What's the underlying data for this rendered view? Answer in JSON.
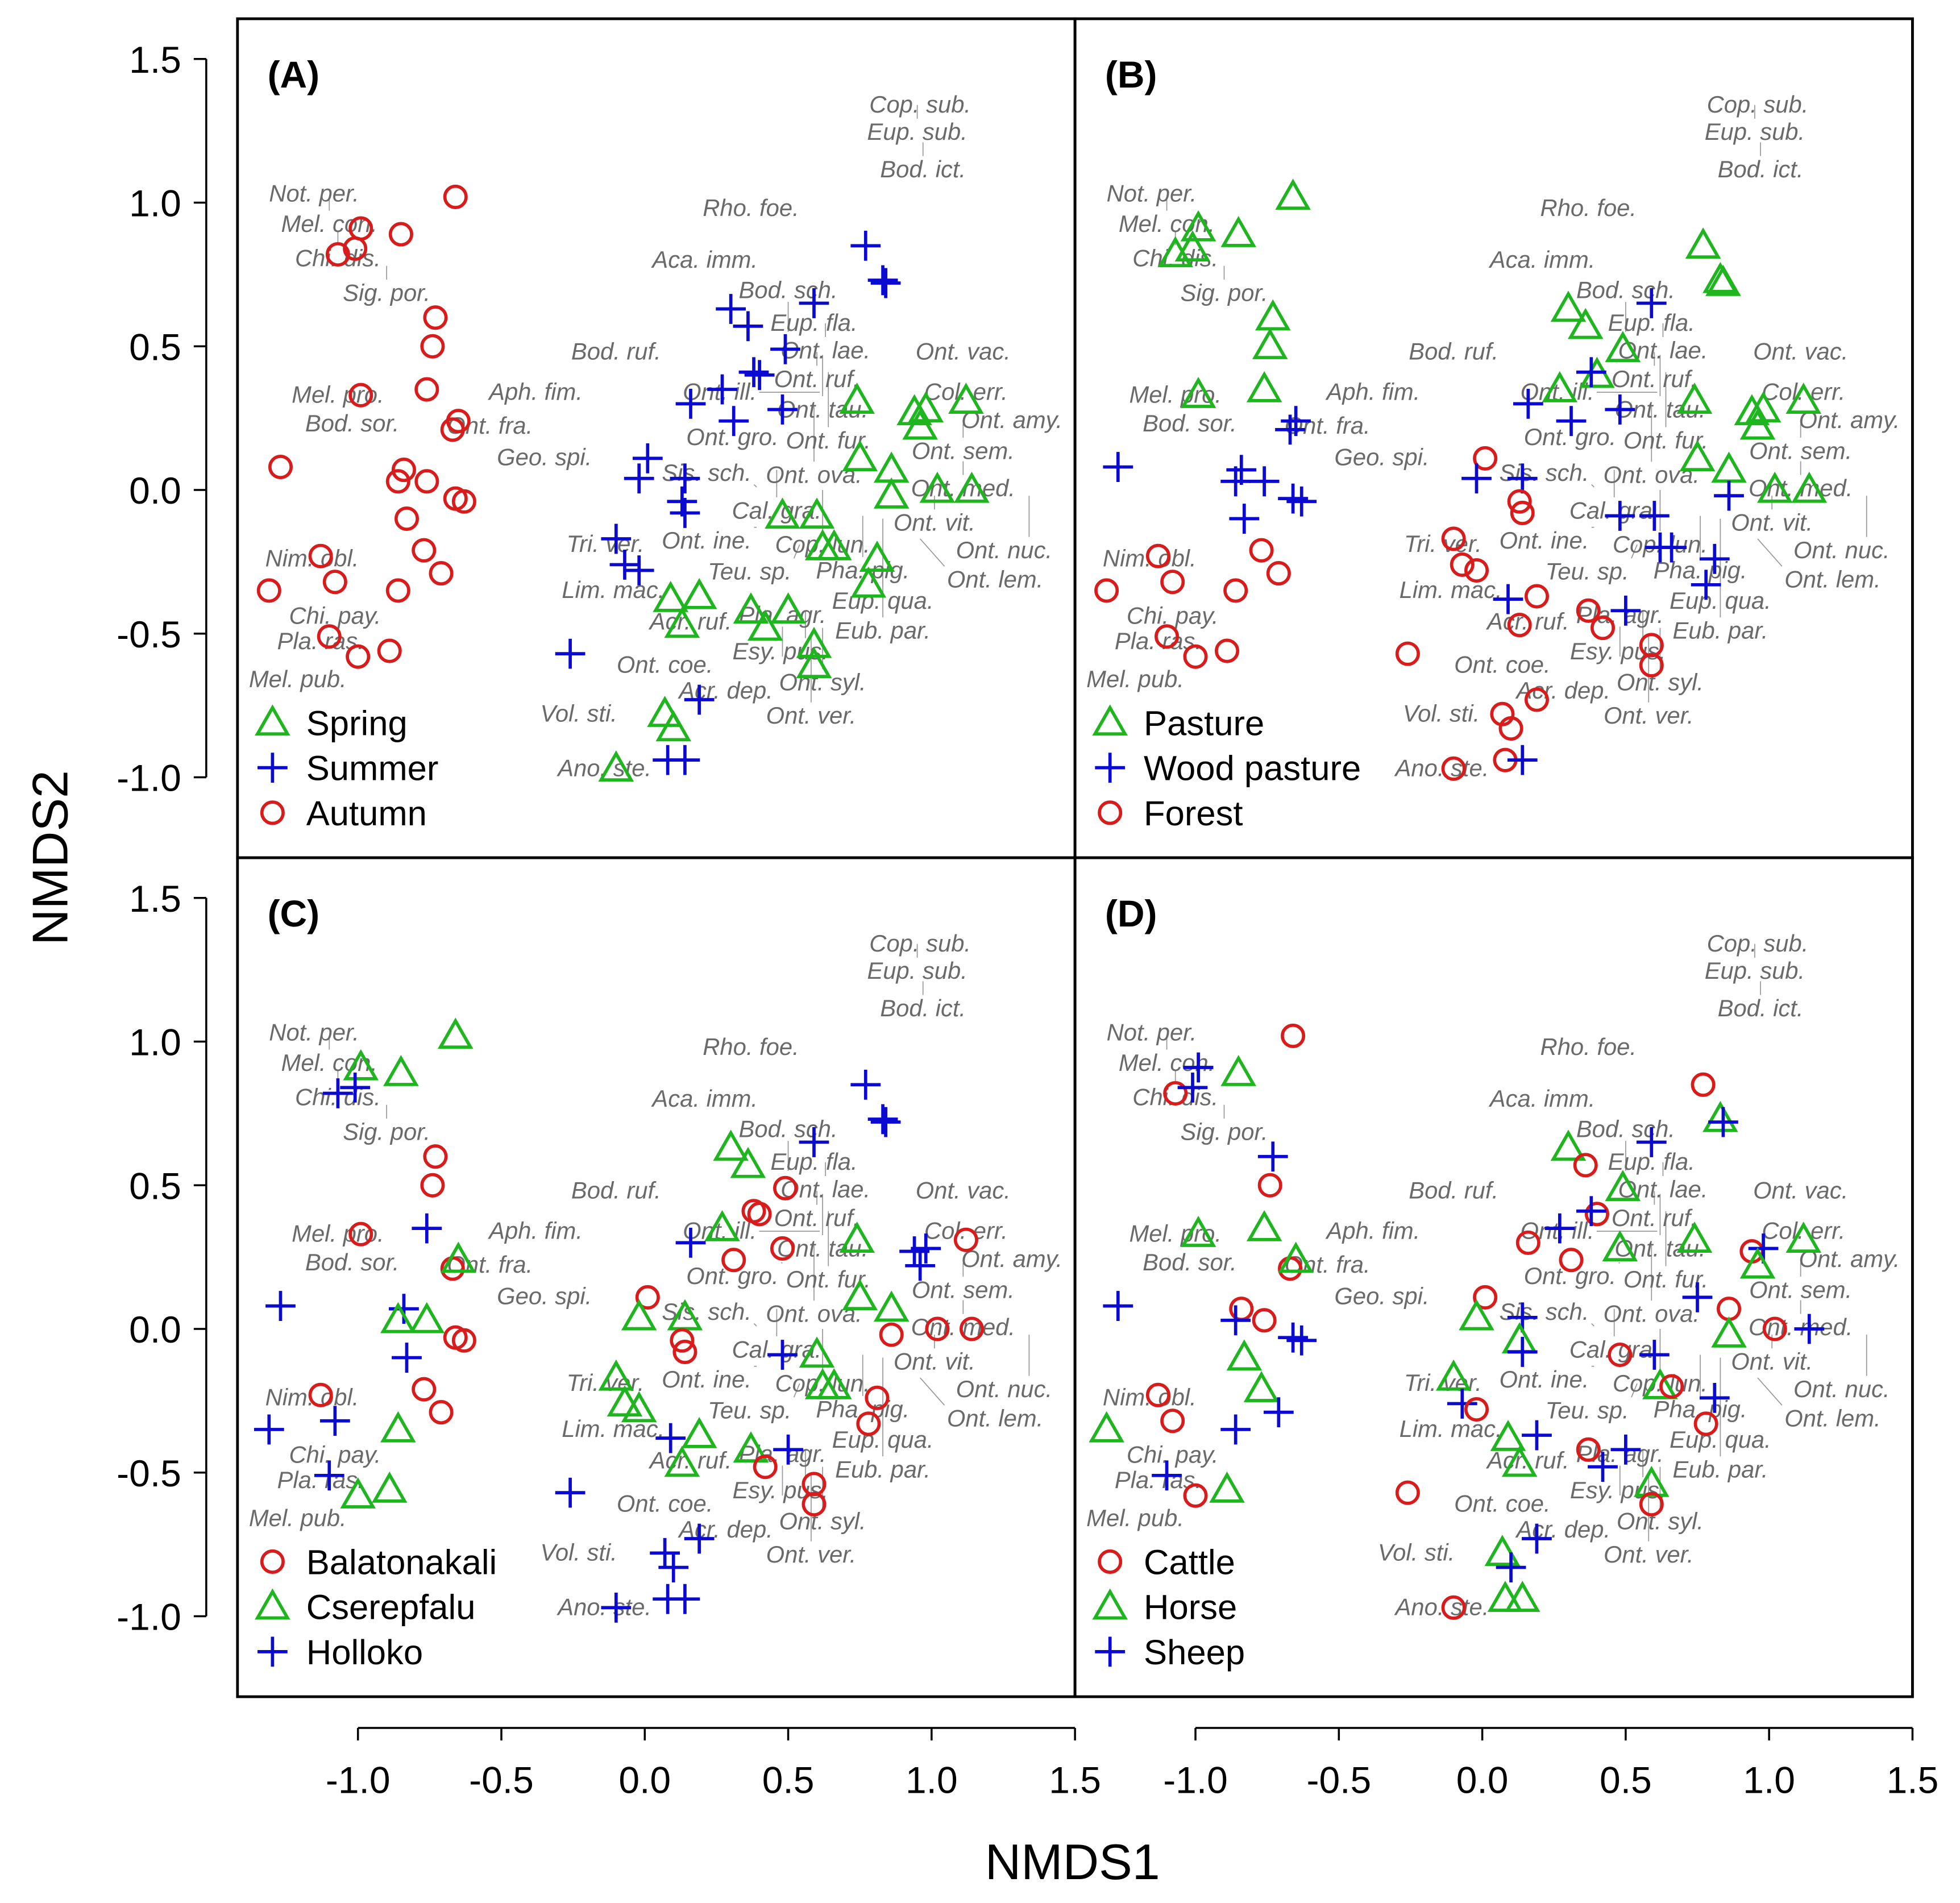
{
  "chart_data": {
    "type": "scatter",
    "title": "",
    "xlabel": "NMDS1",
    "ylabel": "NMDS2",
    "xlim": [
      -1.42,
      1.5
    ],
    "ylim": [
      -1.28,
      1.64
    ],
    "grid": false,
    "x_ticks": [
      {
        "value": -1.0,
        "label": "-1.0"
      },
      {
        "value": -0.5,
        "label": "-0.5"
      },
      {
        "value": 0.0,
        "label": "0.0"
      },
      {
        "value": 0.5,
        "label": "0.5"
      },
      {
        "value": 1.0,
        "label": "1.0"
      },
      {
        "value": 1.5,
        "label": "1.5"
      }
    ],
    "y_ticks": [
      {
        "value": -1.0,
        "label": "-1.0"
      },
      {
        "value": -0.5,
        "label": "-0.5"
      },
      {
        "value": 0.0,
        "label": "0.0"
      },
      {
        "value": 0.5,
        "label": "0.5"
      },
      {
        "value": 1.0,
        "label": "1.0"
      },
      {
        "value": 1.5,
        "label": "1.5"
      }
    ],
    "colors": {
      "green": "#1fb51f",
      "blue": "#0a0ad0",
      "red": "#d81c1c",
      "species_label": "#6a6a6a"
    },
    "point_fields": [
      "NMDS1",
      "NMDS2",
      "season",
      "habitat",
      "site",
      "grazer"
    ],
    "panels": [
      {
        "letter": "(A)",
        "group_field": 2,
        "legend_position": "bottom-left",
        "legend": [
          {
            "label": "Spring",
            "symbol": "triangle",
            "color": "#1fb51f"
          },
          {
            "label": "Summer",
            "symbol": "plus",
            "color": "#0a0ad0"
          },
          {
            "label": "Autumn",
            "symbol": "circle",
            "color": "#d81c1c"
          }
        ]
      },
      {
        "letter": "(B)",
        "group_field": 3,
        "legend_position": "bottom-left",
        "legend": [
          {
            "label": "Pasture",
            "symbol": "triangle",
            "color": "#1fb51f"
          },
          {
            "label": "Wood pasture",
            "symbol": "plus",
            "color": "#0a0ad0"
          },
          {
            "label": "Forest",
            "symbol": "circle",
            "color": "#d81c1c"
          }
        ]
      },
      {
        "letter": "(C)",
        "group_field": 4,
        "legend_position": "bottom-left",
        "legend": [
          {
            "label": "Balatonakali",
            "symbol": "circle",
            "color": "#d81c1c"
          },
          {
            "label": "Cserepfalu",
            "symbol": "triangle",
            "color": "#1fb51f"
          },
          {
            "label": "Holloko",
            "symbol": "plus",
            "color": "#0a0ad0"
          }
        ]
      },
      {
        "letter": "(D)",
        "group_field": 5,
        "legend_position": "bottom-left",
        "legend": [
          {
            "label": "Cattle",
            "symbol": "circle",
            "color": "#d81c1c"
          },
          {
            "label": "Horse",
            "symbol": "triangle",
            "color": "#1fb51f"
          },
          {
            "label": "Sheep",
            "symbol": "plus",
            "color": "#0a0ad0"
          }
        ]
      }
    ],
    "points": [
      [
        -0.66,
        1.02,
        "Autumn",
        "Pasture",
        "Cserepfalu",
        "Cattle"
      ],
      [
        -0.99,
        0.91,
        "Autumn",
        "Pasture",
        "Cserepfalu",
        "Sheep"
      ],
      [
        -0.85,
        0.89,
        "Autumn",
        "Pasture",
        "Cserepfalu",
        "Horse"
      ],
      [
        -1.07,
        0.82,
        "Autumn",
        "Pasture",
        "Holloko",
        "Cattle"
      ],
      [
        -1.01,
        0.84,
        "Autumn",
        "Pasture",
        "Holloko",
        "Sheep"
      ],
      [
        -0.73,
        0.6,
        "Autumn",
        "Pasture",
        "Balatonakali",
        "Sheep"
      ],
      [
        -0.74,
        0.5,
        "Autumn",
        "Pasture",
        "Balatonakali",
        "Cattle"
      ],
      [
        -0.99,
        0.33,
        "Autumn",
        "Pasture",
        "Balatonakali",
        "Horse"
      ],
      [
        -0.76,
        0.35,
        "Autumn",
        "Pasture",
        "Holloko",
        "Horse"
      ],
      [
        -0.67,
        0.21,
        "Autumn",
        "Wood pasture",
        "Balatonakali",
        "Cattle"
      ],
      [
        -0.65,
        0.24,
        "Autumn",
        "Wood pasture",
        "Cserepfalu",
        "Horse"
      ],
      [
        -1.27,
        0.08,
        "Autumn",
        "Wood pasture",
        "Holloko",
        "Sheep"
      ],
      [
        -0.84,
        0.07,
        "Autumn",
        "Wood pasture",
        "Holloko",
        "Cattle"
      ],
      [
        -0.86,
        0.03,
        "Autumn",
        "Wood pasture",
        "Cserepfalu",
        "Sheep"
      ],
      [
        -0.76,
        0.03,
        "Autumn",
        "Wood pasture",
        "Cserepfalu",
        "Cattle"
      ],
      [
        -0.63,
        -0.04,
        "Autumn",
        "Wood pasture",
        "Balatonakali",
        "Sheep"
      ],
      [
        -0.66,
        -0.03,
        "Autumn",
        "Wood pasture",
        "Balatonakali",
        "Sheep"
      ],
      [
        -0.83,
        -0.1,
        "Autumn",
        "Wood pasture",
        "Holloko",
        "Horse"
      ],
      [
        -0.77,
        -0.21,
        "Autumn",
        "Forest",
        "Balatonakali",
        "Horse"
      ],
      [
        -1.13,
        -0.23,
        "Autumn",
        "Forest",
        "Balatonakali",
        "Cattle"
      ],
      [
        -1.08,
        -0.32,
        "Autumn",
        "Forest",
        "Holloko",
        "Cattle"
      ],
      [
        -0.71,
        -0.29,
        "Autumn",
        "Forest",
        "Balatonakali",
        "Sheep"
      ],
      [
        -0.86,
        -0.35,
        "Autumn",
        "Forest",
        "Cserepfalu",
        "Sheep"
      ],
      [
        -1.31,
        -0.35,
        "Autumn",
        "Forest",
        "Holloko",
        "Horse"
      ],
      [
        -1.1,
        -0.51,
        "Autumn",
        "Forest",
        "Holloko",
        "Sheep"
      ],
      [
        -1.0,
        -0.58,
        "Autumn",
        "Forest",
        "Cserepfalu",
        "Cattle"
      ],
      [
        -0.89,
        -0.56,
        "Autumn",
        "Forest",
        "Cserepfalu",
        "Horse"
      ],
      [
        0.77,
        0.85,
        "Summer",
        "Pasture",
        "Holloko",
        "Cattle"
      ],
      [
        0.83,
        0.73,
        "Summer",
        "Pasture",
        "Holloko",
        "Horse"
      ],
      [
        0.84,
        0.72,
        "Summer",
        "Pasture",
        "Holloko",
        "Sheep"
      ],
      [
        0.3,
        0.63,
        "Summer",
        "Pasture",
        "Cserepfalu",
        "Horse"
      ],
      [
        0.36,
        0.57,
        "Summer",
        "Pasture",
        "Cserepfalu",
        "Cattle"
      ],
      [
        0.59,
        0.65,
        "Summer",
        "Wood pasture",
        "Holloko",
        "Sheep"
      ],
      [
        0.49,
        0.49,
        "Summer",
        "Pasture",
        "Balatonakali",
        "Horse"
      ],
      [
        0.4,
        0.4,
        "Summer",
        "Pasture",
        "Balatonakali",
        "Cattle"
      ],
      [
        0.38,
        0.41,
        "Summer",
        "Wood pasture",
        "Balatonakali",
        "Sheep"
      ],
      [
        0.27,
        0.35,
        "Summer",
        "Pasture",
        "Cserepfalu",
        "Sheep"
      ],
      [
        0.16,
        0.3,
        "Summer",
        "Wood pasture",
        "Holloko",
        "Cattle"
      ],
      [
        0.31,
        0.24,
        "Summer",
        "Wood pasture",
        "Balatonakali",
        "Cattle"
      ],
      [
        0.48,
        0.28,
        "Summer",
        "Wood pasture",
        "Balatonakali",
        "Horse"
      ],
      [
        0.01,
        0.11,
        "Summer",
        "Forest",
        "Balatonakali",
        "Cattle"
      ],
      [
        -0.02,
        0.04,
        "Summer",
        "Wood pasture",
        "Cserepfalu",
        "Horse"
      ],
      [
        0.14,
        0.04,
        "Summer",
        "Wood pasture",
        "Cserepfalu",
        "Sheep"
      ],
      [
        0.13,
        -0.04,
        "Summer",
        "Forest",
        "Balatonakali",
        "Horse"
      ],
      [
        0.14,
        -0.08,
        "Summer",
        "Forest",
        "Balatonakali",
        "Sheep"
      ],
      [
        -0.1,
        -0.17,
        "Summer",
        "Forest",
        "Cserepfalu",
        "Horse"
      ],
      [
        -0.07,
        -0.26,
        "Summer",
        "Forest",
        "Cserepfalu",
        "Sheep"
      ],
      [
        -0.02,
        -0.28,
        "Summer",
        "Forest",
        "Cserepfalu",
        "Cattle"
      ],
      [
        -0.26,
        -0.57,
        "Summer",
        "Forest",
        "Holloko",
        "Cattle"
      ],
      [
        0.19,
        -0.73,
        "Summer",
        "Forest",
        "Holloko",
        "Sheep"
      ],
      [
        0.08,
        -0.94,
        "Summer",
        "Forest",
        "Holloko",
        "Horse"
      ],
      [
        0.14,
        -0.94,
        "Summer",
        "Wood pasture",
        "Holloko",
        "Horse"
      ],
      [
        0.74,
        0.31,
        "Spring",
        "Pasture",
        "Cserepfalu",
        "Horse"
      ],
      [
        0.94,
        0.27,
        "Spring",
        "Pasture",
        "Holloko",
        "Cattle"
      ],
      [
        0.98,
        0.28,
        "Spring",
        "Pasture",
        "Holloko",
        "Sheep"
      ],
      [
        1.12,
        0.31,
        "Spring",
        "Pasture",
        "Balatonakali",
        "Horse"
      ],
      [
        0.96,
        0.22,
        "Spring",
        "Pasture",
        "Holloko",
        "Horse"
      ],
      [
        0.75,
        0.11,
        "Spring",
        "Pasture",
        "Cserepfalu",
        "Sheep"
      ],
      [
        0.86,
        0.07,
        "Spring",
        "Pasture",
        "Cserepfalu",
        "Cattle"
      ],
      [
        0.86,
        -0.02,
        "Spring",
        "Wood pasture",
        "Balatonakali",
        "Horse"
      ],
      [
        1.02,
        0.0,
        "Spring",
        "Pasture",
        "Balatonakali",
        "Cattle"
      ],
      [
        1.14,
        0.0,
        "Spring",
        "Pasture",
        "Balatonakali",
        "Sheep"
      ],
      [
        0.48,
        -0.09,
        "Spring",
        "Wood pasture",
        "Holloko",
        "Cattle"
      ],
      [
        0.6,
        -0.09,
        "Spring",
        "Wood pasture",
        "Cserepfalu",
        "Sheep"
      ],
      [
        0.62,
        -0.2,
        "Spring",
        "Wood pasture",
        "Cserepfalu",
        "Horse"
      ],
      [
        0.66,
        -0.2,
        "Spring",
        "Wood pasture",
        "Cserepfalu",
        "Cattle"
      ],
      [
        0.81,
        -0.24,
        "Spring",
        "Wood pasture",
        "Balatonakali",
        "Sheep"
      ],
      [
        0.78,
        -0.33,
        "Spring",
        "Wood pasture",
        "Balatonakali",
        "Cattle"
      ],
      [
        0.09,
        -0.38,
        "Spring",
        "Wood pasture",
        "Holloko",
        "Horse"
      ],
      [
        0.19,
        -0.37,
        "Spring",
        "Forest",
        "Cserepfalu",
        "Sheep"
      ],
      [
        0.37,
        -0.42,
        "Spring",
        "Forest",
        "Cserepfalu",
        "Cattle"
      ],
      [
        0.5,
        -0.42,
        "Spring",
        "Wood pasture",
        "Holloko",
        "Sheep"
      ],
      [
        0.42,
        -0.48,
        "Spring",
        "Forest",
        "Balatonakali",
        "Sheep"
      ],
      [
        0.13,
        -0.47,
        "Spring",
        "Forest",
        "Cserepfalu",
        "Horse"
      ],
      [
        0.59,
        -0.54,
        "Spring",
        "Forest",
        "Balatonakali",
        "Horse"
      ],
      [
        0.59,
        -0.61,
        "Spring",
        "Forest",
        "Balatonakali",
        "Cattle"
      ],
      [
        0.07,
        -0.78,
        "Spring",
        "Forest",
        "Holloko",
        "Horse"
      ],
      [
        0.1,
        -0.83,
        "Spring",
        "Forest",
        "Holloko",
        "Sheep"
      ],
      [
        -0.1,
        -0.97,
        "Spring",
        "Forest",
        "Holloko",
        "Cattle"
      ]
    ],
    "species": [
      {
        "name": "Cop. sub.",
        "x": 0.96,
        "y": 1.34
      },
      {
        "name": "Eup. sub.",
        "x": 0.95,
        "y": 1.34
      },
      {
        "name": "Bod. ict.",
        "x": 0.97,
        "y": 1.21
      },
      {
        "name": "Not. per.",
        "x": -1.24,
        "y": 1.03
      },
      {
        "name": "Mel. con.",
        "x": -1.1,
        "y": 1.02
      },
      {
        "name": "Chi. dis.",
        "x": -1.07,
        "y": 0.9
      },
      {
        "name": "Sig. por.",
        "x": -0.9,
        "y": 0.78
      },
      {
        "name": "Rho. foe.",
        "x": 0.37,
        "y": 0.98
      },
      {
        "name": "Aca. imm.",
        "x": 0.21,
        "y": 0.8
      },
      {
        "name": "Bod. ruf.",
        "x": -0.1,
        "y": 0.48
      },
      {
        "name": "Eup. fla.",
        "x": 0.59,
        "y": 0.58
      },
      {
        "name": "Ont. lae.",
        "x": 0.63,
        "y": 0.58
      },
      {
        "name": "Bod. sch.",
        "x": 0.5,
        "y": 0.55
      },
      {
        "name": "Ont. ruf.",
        "x": 0.6,
        "y": 0.48
      },
      {
        "name": "Ont. tau.",
        "x": 0.62,
        "y": 0.47
      },
      {
        "name": "Ont. vac.",
        "x": 1.11,
        "y": 0.48
      },
      {
        "name": "Ont. fur.",
        "x": 0.64,
        "y": 0.41
      },
      {
        "name": "Ont. ill.",
        "x": 0.61,
        "y": 0.34
      },
      {
        "name": "Ont. ova.",
        "x": 0.59,
        "y": 0.29
      },
      {
        "name": "Ont. gro.",
        "x": 0.48,
        "y": 0.23
      },
      {
        "name": "Col. err.",
        "x": 1.12,
        "y": 0.34
      },
      {
        "name": "Ont. amy.",
        "x": 1.28,
        "y": 0.29
      },
      {
        "name": "Ont. sem.",
        "x": 1.11,
        "y": 0.23
      },
      {
        "name": "Aph. fim.",
        "x": -0.38,
        "y": 0.34
      },
      {
        "name": "Mel. pro.",
        "x": -1.07,
        "y": 0.33
      },
      {
        "name": "Ont. fra.",
        "x": -0.54,
        "y": 0.27
      },
      {
        "name": "Bod. sor.",
        "x": -1.02,
        "y": 0.23
      },
      {
        "name": "Geo. spi.",
        "x": -0.35,
        "y": 0.16
      },
      {
        "name": "Ont. med.",
        "x": 1.11,
        "y": 0.1
      },
      {
        "name": "Cal. gra.",
        "x": 0.46,
        "y": 0.07
      },
      {
        "name": "Sis. sch.",
        "x": 0.39,
        "y": 0.01
      },
      {
        "name": "Cop. lun.",
        "x": 0.62,
        "y": 0.0
      },
      {
        "name": "Ont. vit.",
        "x": 1.01,
        "y": -0.02
      },
      {
        "name": "Ont. nuc.",
        "x": 1.34,
        "y": -0.02
      },
      {
        "name": "Pha. pig.",
        "x": 0.76,
        "y": -0.09
      },
      {
        "name": "Eup. qua.",
        "x": 0.83,
        "y": -0.1
      },
      {
        "name": "Ont. ine.",
        "x": 0.39,
        "y": -0.13
      },
      {
        "name": "Teu. sp.",
        "x": 0.54,
        "y": -0.19
      },
      {
        "name": "Ont. lem.",
        "x": 0.96,
        "y": -0.17
      },
      {
        "name": "Eub. par.",
        "x": 0.83,
        "y": -0.3
      },
      {
        "name": "Tri. ver.",
        "x": -0.05,
        "y": -0.19
      },
      {
        "name": "Lim. mac.",
        "x": -0.11,
        "y": -0.35
      },
      {
        "name": "Nim. obl.",
        "x": -1.16,
        "y": -0.24
      },
      {
        "name": "Chi. pay.",
        "x": -1.08,
        "y": -0.44
      },
      {
        "name": "Pla. ras.",
        "x": -1.13,
        "y": -0.48
      },
      {
        "name": "Mel. pub.",
        "x": -1.21,
        "y": -0.66
      },
      {
        "name": "Acr. ruf.",
        "x": 0.16,
        "y": -0.46
      },
      {
        "name": "Esy. pus.",
        "x": 0.56,
        "y": -0.42
      },
      {
        "name": "Ont. syl.",
        "x": 0.62,
        "y": -0.48
      },
      {
        "name": "Ont. ver.",
        "x": 0.58,
        "y": -0.5
      },
      {
        "name": "Pla. agr.",
        "x": 0.48,
        "y": -0.58
      },
      {
        "name": "Ont. coe.",
        "x": 0.07,
        "y": -0.61
      },
      {
        "name": "Acr. dep.",
        "x": 0.37,
        "y": -0.7
      },
      {
        "name": "Vol. sti.",
        "x": -0.23,
        "y": -0.78
      },
      {
        "name": "Ano. ste.",
        "x": -0.14,
        "y": -0.97
      }
    ]
  }
}
